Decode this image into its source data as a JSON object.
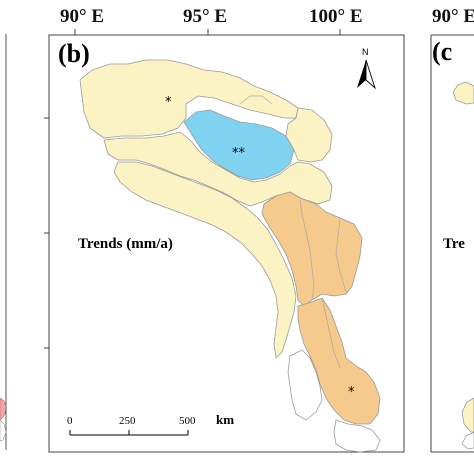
{
  "top_axis": {
    "ticks": [
      "90° E",
      "95° E",
      "100° E",
      "90° E"
    ]
  },
  "panels": {
    "left_partial_label": "",
    "center_label": "(b)",
    "right_partial_label": "(c"
  },
  "north_arrow": {
    "letter": "N"
  },
  "legend": {
    "title": "Trends  (mm/a)",
    "right_partial_title": "Tre"
  },
  "scale_bar": {
    "labels": [
      "0",
      "250",
      "500"
    ],
    "unit": "km"
  },
  "markers": {
    "upper_basin": "*",
    "lake_region": "**",
    "lower_basin": "*"
  },
  "colors": {
    "no_significant_trend": "#fbf3c4",
    "decreasing_trend": "#f6c98c",
    "increasing_trend": "#7fd3f0",
    "no_data": "#ffffff",
    "left_panel_accent": "#f4a3a3",
    "border": "#8c8c8c"
  }
}
